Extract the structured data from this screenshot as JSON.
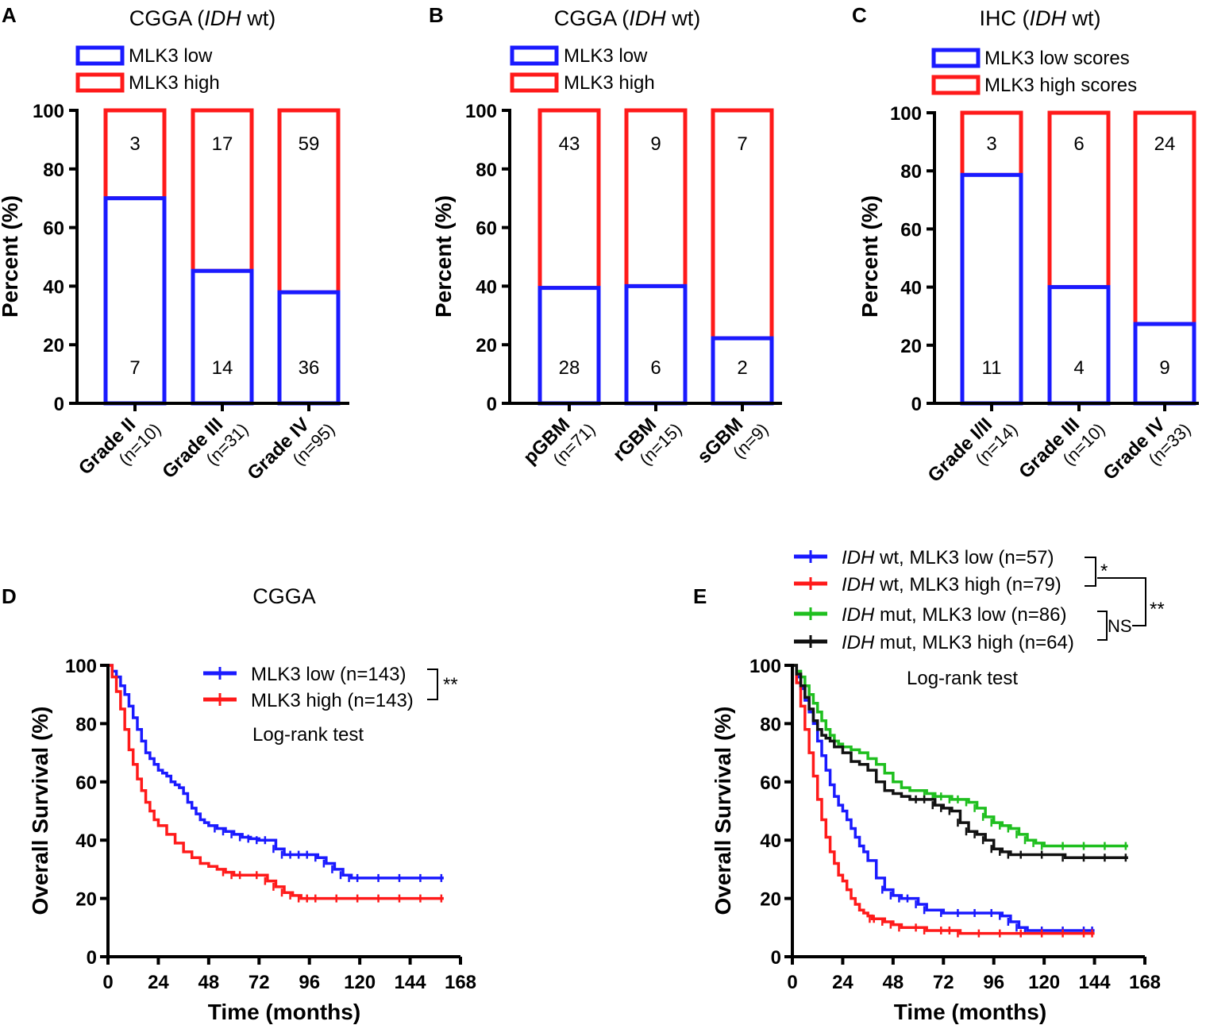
{
  "colors": {
    "low": "#1a1aff",
    "high": "#ff1a1a",
    "mut_low": "#1fbf1f",
    "mut_high": "#111111",
    "axis": "#000000"
  },
  "chart_data": [
    {
      "panel": "A",
      "type": "bar",
      "stacked": true,
      "title_pre": "CGGA (",
      "title_em": "IDH",
      "title_post": " wt)",
      "ylabel": "Percent (%)",
      "ylim": [
        0,
        100
      ],
      "yticks": [
        "0",
        "20",
        "40",
        "60",
        "80",
        "100"
      ],
      "legend": [
        "MLK3 low",
        "MLK3 high"
      ],
      "categories": [
        "Grade II",
        "Grade III",
        "Grade IV"
      ],
      "n_labels": [
        "(n=10)",
        "(n=31)",
        "(n=95)"
      ],
      "series": [
        {
          "name": "MLK3 low",
          "values": [
            70,
            45.2,
            37.9
          ],
          "counts": [
            "7",
            "14",
            "36"
          ]
        },
        {
          "name": "MLK3 high",
          "values": [
            30,
            54.8,
            62.1
          ],
          "counts": [
            "3",
            "17",
            "59"
          ]
        }
      ]
    },
    {
      "panel": "B",
      "type": "bar",
      "stacked": true,
      "title_pre": "CGGA (",
      "title_em": "IDH",
      "title_post": " wt)",
      "ylabel": "Percent (%)",
      "ylim": [
        0,
        100
      ],
      "yticks": [
        "0",
        "20",
        "40",
        "60",
        "80",
        "100"
      ],
      "legend": [
        "MLK3 low",
        "MLK3 high"
      ],
      "categories": [
        "pGBM",
        "rGBM",
        "sGBM"
      ],
      "n_labels": [
        "(n=71)",
        "(n=15)",
        "(n=9)"
      ],
      "series": [
        {
          "name": "MLK3 low",
          "values": [
            39.4,
            40,
            22.2
          ],
          "counts": [
            "28",
            "6",
            "2"
          ]
        },
        {
          "name": "MLK3 high",
          "values": [
            60.6,
            60,
            77.8
          ],
          "counts": [
            "43",
            "9",
            "7"
          ]
        }
      ]
    },
    {
      "panel": "C",
      "type": "bar",
      "stacked": true,
      "title_pre": "IHC (",
      "title_em": "IDH",
      "title_post": " wt)",
      "ylabel": "Percent (%)",
      "ylim": [
        0,
        100
      ],
      "yticks": [
        "0",
        "20",
        "40",
        "60",
        "80",
        "100"
      ],
      "legend": [
        "MLK3 low scores",
        "MLK3 high scores"
      ],
      "categories": [
        "Grade I/II",
        "Grade III",
        "Grade IV"
      ],
      "n_labels": [
        "(n=14)",
        "(n=10)",
        "(n=33)"
      ],
      "series": [
        {
          "name": "MLK3 low scores",
          "values": [
            78.6,
            40,
            27.3
          ],
          "counts": [
            "11",
            "4",
            "9"
          ]
        },
        {
          "name": "MLK3 high scores",
          "values": [
            21.4,
            60,
            72.7
          ],
          "counts": [
            "3",
            "6",
            "24"
          ]
        }
      ]
    },
    {
      "panel": "D",
      "type": "line",
      "subtype": "kaplan-meier",
      "title": "CGGA",
      "xlabel": "Time (months)",
      "ylabel": "Overall Survival (%)",
      "xlim": [
        0,
        168
      ],
      "ylim": [
        0,
        100
      ],
      "xticks": [
        "0",
        "24",
        "48",
        "72",
        "96",
        "120",
        "144",
        "168"
      ],
      "yticks": [
        "0",
        "20",
        "40",
        "60",
        "80",
        "100"
      ],
      "note": "Log-rank test",
      "significance": "**",
      "series": [
        {
          "name": "MLK3 low (n=143)",
          "color_key": "low",
          "x": [
            0,
            2,
            4,
            6,
            8,
            10,
            12,
            14,
            16,
            18,
            20,
            22,
            24,
            26,
            28,
            30,
            32,
            34,
            36,
            38,
            40,
            42,
            44,
            46,
            48,
            52,
            56,
            60,
            64,
            68,
            72,
            76,
            80,
            84,
            88,
            92,
            96,
            100,
            104,
            108,
            112,
            116,
            120,
            130,
            140,
            150,
            160
          ],
          "y": [
            100,
            98,
            96,
            93,
            90,
            86,
            82,
            78,
            74,
            70,
            68,
            66,
            64,
            63,
            62,
            60,
            59,
            58,
            56,
            53,
            51,
            49,
            47,
            46,
            45,
            44,
            43,
            42,
            41,
            40.5,
            40,
            40,
            37,
            35,
            35,
            35,
            35,
            34,
            32,
            30,
            28,
            27,
            27,
            27,
            27,
            27,
            27
          ]
        },
        {
          "name": "MLK3 high (n=143)",
          "color_key": "high",
          "x": [
            0,
            2,
            4,
            6,
            8,
            10,
            12,
            14,
            16,
            18,
            20,
            22,
            24,
            28,
            32,
            36,
            40,
            44,
            48,
            52,
            56,
            60,
            64,
            72,
            76,
            80,
            84,
            88,
            92,
            96,
            100,
            110,
            120,
            130,
            140,
            150,
            160
          ],
          "y": [
            100,
            96,
            91,
            85,
            78,
            71,
            66,
            61,
            57,
            53,
            50,
            47,
            45,
            42,
            39,
            36,
            34,
            32,
            31,
            30,
            29,
            28,
            28,
            28,
            26,
            24,
            22,
            21,
            20,
            20,
            20,
            20,
            20,
            20,
            20,
            20,
            20
          ]
        }
      ]
    },
    {
      "panel": "E",
      "type": "line",
      "subtype": "kaplan-meier",
      "xlabel": "Time (months)",
      "ylabel": "Overall Survival (%)",
      "xlim": [
        0,
        168
      ],
      "ylim": [
        0,
        100
      ],
      "xticks": [
        "0",
        "24",
        "48",
        "72",
        "96",
        "120",
        "144",
        "168"
      ],
      "yticks": [
        "0",
        "20",
        "40",
        "60",
        "80",
        "100"
      ],
      "note": "Log-rank test",
      "brackets": [
        "*",
        "NS",
        "**"
      ],
      "series": [
        {
          "name_em": "IDH",
          "name": " wt, MLK3 low (n=57)",
          "color_key": "low",
          "x": [
            0,
            2,
            4,
            6,
            8,
            10,
            12,
            14,
            16,
            18,
            20,
            22,
            24,
            26,
            28,
            30,
            32,
            34,
            36,
            40,
            44,
            48,
            52,
            56,
            60,
            64,
            72,
            80,
            88,
            96,
            100,
            104,
            108,
            112,
            120,
            130,
            140,
            144
          ],
          "y": [
            100,
            96,
            92,
            88,
            84,
            80,
            74,
            69,
            64,
            59,
            55,
            52,
            50,
            47,
            44,
            41,
            38,
            36,
            33,
            27,
            23,
            21,
            20,
            20,
            18,
            16,
            15,
            15,
            15,
            15,
            14,
            12,
            10,
            9,
            9,
            9,
            9,
            9
          ]
        },
        {
          "name_em": "IDH",
          "name": " wt, MLK3 high (n=79)",
          "color_key": "high",
          "x": [
            0,
            2,
            4,
            6,
            8,
            10,
            12,
            14,
            16,
            18,
            20,
            22,
            24,
            26,
            28,
            30,
            32,
            34,
            36,
            38,
            40,
            44,
            48,
            52,
            60,
            64,
            72,
            76,
            80,
            90,
            100,
            110,
            120,
            130,
            140,
            144
          ],
          "y": [
            100,
            94,
            86,
            78,
            70,
            62,
            54,
            47,
            41,
            36,
            32,
            28,
            26,
            23,
            20,
            18,
            16,
            15,
            14,
            13,
            13,
            12,
            11,
            10,
            10,
            9,
            9,
            9,
            8,
            8,
            8,
            8,
            8,
            8,
            8,
            8
          ]
        },
        {
          "name_em": "IDH",
          "name": " mut, MLK3 low (n=86)",
          "color_key": "mut_low",
          "x": [
            0,
            2,
            4,
            6,
            8,
            10,
            12,
            14,
            16,
            18,
            20,
            22,
            24,
            28,
            32,
            36,
            40,
            44,
            48,
            52,
            56,
            60,
            64,
            68,
            72,
            76,
            80,
            84,
            88,
            92,
            96,
            100,
            104,
            108,
            112,
            116,
            120,
            130,
            140,
            150,
            160
          ],
          "y": [
            100,
            98,
            96,
            93,
            90,
            87,
            84,
            81,
            78,
            76,
            74,
            73,
            72,
            71,
            70,
            68,
            66,
            63,
            60,
            58,
            57,
            57,
            56,
            55,
            55,
            54,
            54,
            53,
            51,
            48,
            46,
            45,
            44,
            42,
            40,
            39,
            38,
            38,
            38,
            38,
            38
          ]
        },
        {
          "name_em": "IDH",
          "name": " mut, MLK3 high (n=64)",
          "color_key": "mut_high",
          "x": [
            0,
            2,
            4,
            6,
            8,
            10,
            12,
            14,
            16,
            18,
            20,
            24,
            28,
            32,
            36,
            40,
            44,
            48,
            52,
            56,
            60,
            64,
            68,
            72,
            76,
            80,
            84,
            88,
            92,
            96,
            100,
            104,
            110,
            120,
            130,
            140,
            150,
            160
          ],
          "y": [
            100,
            97,
            93,
            89,
            85,
            81,
            78,
            76,
            75,
            74,
            72,
            70,
            67,
            66,
            64,
            60,
            57,
            56,
            55,
            54,
            54,
            54,
            52,
            51,
            50,
            46,
            43,
            42,
            40,
            37,
            36,
            35,
            35,
            35,
            34,
            34,
            34,
            34
          ]
        }
      ]
    }
  ]
}
